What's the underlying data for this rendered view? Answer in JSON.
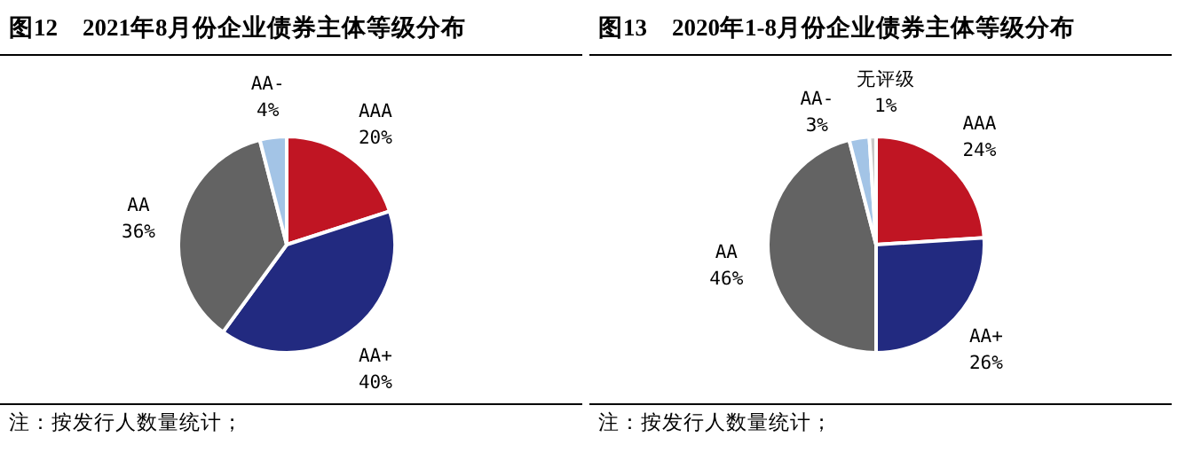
{
  "chart_data": [
    {
      "type": "pie",
      "title": "图12　2021年8月份企业债券主体等级分布",
      "categories": [
        "AAA",
        "AA+",
        "AA",
        "AA-"
      ],
      "values": [
        20,
        40,
        36,
        4
      ],
      "value_labels": [
        "20%",
        "40%",
        "36%",
        "4%"
      ],
      "colors": [
        "#c01523",
        "#222a80",
        "#636363",
        "#a3c4e6"
      ],
      "annotations": [
        "注：按发行人数量统计；"
      ],
      "legend": false
    },
    {
      "type": "pie",
      "title": "图13　2020年1-8月份企业债券主体等级分布",
      "categories": [
        "AAA",
        "AA+",
        "AA",
        "AA-",
        "无评级"
      ],
      "values": [
        24,
        26,
        46,
        3,
        1
      ],
      "value_labels": [
        "24%",
        "26%",
        "46%",
        "3%",
        "1%"
      ],
      "colors": [
        "#c01523",
        "#222a80",
        "#636363",
        "#a3c4e6",
        "#c8c8c8"
      ],
      "annotations": [
        "注：按发行人数量统计；"
      ],
      "legend": false
    }
  ]
}
